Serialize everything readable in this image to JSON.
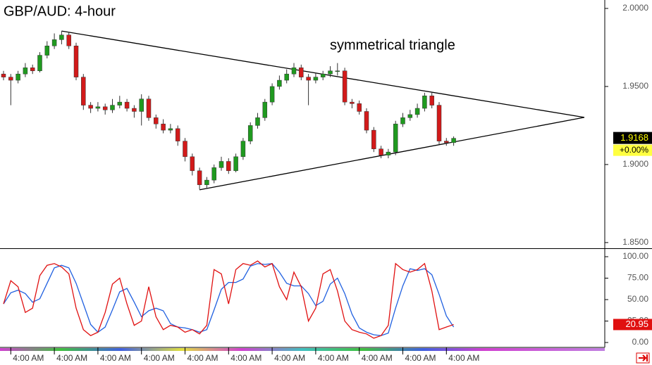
{
  "chart_data": [
    {
      "type": "candlestick",
      "title": "GBP/AUD: 4-hour",
      "annotation": "symmetrical triangle",
      "categories": [
        null,
        "4:00 AM",
        null,
        null,
        null,
        null,
        null,
        "4:00 AM",
        null,
        null,
        null,
        null,
        null,
        "4:00 AM",
        null,
        null,
        null,
        null,
        null,
        "4:00 AM",
        null,
        null,
        null,
        null,
        null,
        "4:00 AM",
        null,
        null,
        null,
        null,
        null,
        "4:00 AM",
        null,
        null,
        null,
        null,
        null,
        "4:00 AM",
        null,
        null,
        null,
        null,
        null,
        "4:00 AM",
        null,
        null,
        null,
        null,
        null,
        "4:00 AM",
        null,
        null,
        null,
        null,
        null,
        "4:00 AM",
        null,
        null,
        null,
        null,
        null,
        "4:00 AM",
        null
      ],
      "open": [
        1.958,
        1.956,
        1.954,
        1.958,
        1.962,
        1.96,
        1.97,
        1.976,
        1.98,
        1.983,
        1.976,
        1.956,
        1.938,
        1.936,
        1.937,
        1.935,
        1.938,
        1.94,
        1.936,
        1.934,
        1.942,
        1.93,
        1.926,
        1.922,
        1.923,
        1.915,
        1.905,
        1.896,
        1.887,
        1.89,
        1.898,
        1.902,
        1.896,
        1.905,
        1.915,
        1.925,
        1.93,
        1.94,
        1.95,
        1.954,
        1.958,
        1.962,
        1.956,
        1.954,
        1.956,
        1.958,
        1.96,
        1.96,
        1.94,
        1.939,
        1.934,
        1.922,
        1.91,
        1.906,
        1.908,
        1.926,
        1.93,
        1.932,
        1.936,
        1.944,
        1.938,
        1.915,
        1.914
      ],
      "high": [
        1.96,
        1.958,
        1.96,
        1.965,
        1.964,
        1.972,
        1.979,
        1.984,
        1.9855,
        1.985,
        1.978,
        1.958,
        1.94,
        1.94,
        1.939,
        1.942,
        1.944,
        1.942,
        1.938,
        1.945,
        1.944,
        1.932,
        1.929,
        1.926,
        1.925,
        1.917,
        1.907,
        1.898,
        1.892,
        1.9,
        1.905,
        1.904,
        1.907,
        1.917,
        1.927,
        1.933,
        1.942,
        1.952,
        1.957,
        1.961,
        1.965,
        1.964,
        1.958,
        1.959,
        1.96,
        1.963,
        1.965,
        1.962,
        1.942,
        1.941,
        1.936,
        1.924,
        1.912,
        1.91,
        1.928,
        1.933,
        1.935,
        1.939,
        1.946,
        1.946,
        1.94,
        1.917,
        1.918
      ],
      "low": [
        1.954,
        1.938,
        1.952,
        1.956,
        1.958,
        1.959,
        1.968,
        1.974,
        1.977,
        1.974,
        1.954,
        1.935,
        1.933,
        1.934,
        1.932,
        1.933,
        1.936,
        1.934,
        1.93,
        1.925,
        1.928,
        1.923,
        1.92,
        1.92,
        1.912,
        1.902,
        1.893,
        1.884,
        1.885,
        1.888,
        1.896,
        1.894,
        1.895,
        1.903,
        1.913,
        1.923,
        1.928,
        1.938,
        1.948,
        1.952,
        1.956,
        1.954,
        1.938,
        1.952,
        1.954,
        1.956,
        1.957,
        1.938,
        1.936,
        1.932,
        1.92,
        1.908,
        1.904,
        1.904,
        1.906,
        1.924,
        1.928,
        1.93,
        1.934,
        1.936,
        1.913,
        1.912,
        1.912
      ],
      "close": [
        1.956,
        1.954,
        1.958,
        1.962,
        1.96,
        1.97,
        1.976,
        1.98,
        1.983,
        1.976,
        1.956,
        1.938,
        1.936,
        1.937,
        1.935,
        1.938,
        1.94,
        1.936,
        1.934,
        1.942,
        1.93,
        1.926,
        1.922,
        1.923,
        1.915,
        1.905,
        1.896,
        1.887,
        1.89,
        1.898,
        1.902,
        1.896,
        1.905,
        1.915,
        1.925,
        1.93,
        1.94,
        1.95,
        1.954,
        1.958,
        1.962,
        1.956,
        1.954,
        1.956,
        1.958,
        1.96,
        1.96,
        1.94,
        1.939,
        1.934,
        1.922,
        1.91,
        1.906,
        1.908,
        1.926,
        1.93,
        1.932,
        1.936,
        1.944,
        1.938,
        1.915,
        1.914,
        1.9168
      ],
      "up_color": "#1f9a1f",
      "down_color": "#d21a1a",
      "ylim": [
        1.8468,
        2.0054
      ],
      "yticks": [
        {
          "value": 2.0,
          "label": "2.0000"
        },
        {
          "value": 1.95,
          "label": "1.9500"
        },
        {
          "value": 1.9,
          "label": "1.9000"
        },
        {
          "value": 1.85,
          "label": "1.8500"
        }
      ],
      "last_change": "+0.00%",
      "trendlines": [
        {
          "x": [
            8,
            80
          ],
          "y": [
            1.9855,
            1.9302
          ]
        },
        {
          "x": [
            27,
            80
          ],
          "y": [
            1.8838,
            1.9302
          ]
        }
      ]
    },
    {
      "type": "line",
      "series": [
        {
          "color": "#e01010",
          "values": [
            45,
            72,
            65,
            35,
            40,
            78,
            90,
            92,
            88,
            80,
            40,
            15,
            8,
            12,
            35,
            68,
            75,
            45,
            20,
            25,
            65,
            30,
            15,
            20,
            18,
            12,
            15,
            10,
            20,
            85,
            80,
            45,
            85,
            92,
            90,
            95,
            88,
            92,
            65,
            50,
            82,
            65,
            25,
            40,
            80,
            85,
            60,
            25,
            15,
            12,
            10,
            5,
            8,
            20,
            92,
            85,
            82,
            85,
            92,
            60,
            15,
            18,
            20.95
          ]
        },
        {
          "color": "#2060e0",
          "values": [
            45,
            58,
            61,
            57,
            47,
            51,
            69,
            87,
            90,
            87,
            69,
            45,
            21,
            12,
            18,
            38,
            59,
            63,
            47,
            30,
            37,
            40,
            37,
            22,
            18,
            17,
            15,
            12,
            15,
            38,
            62,
            70,
            70,
            74,
            89,
            92,
            91,
            92,
            82,
            69,
            66,
            66,
            57,
            43,
            48,
            68,
            75,
            57,
            33,
            17,
            12,
            9,
            8,
            11,
            40,
            66,
            86,
            84,
            86,
            79,
            56,
            31,
            18
          ]
        }
      ],
      "ylim": [
        -4.1,
        108.2
      ],
      "yticks": [
        {
          "value": 100,
          "label": "100.00"
        },
        {
          "value": 75,
          "label": "75.00"
        },
        {
          "value": 50,
          "label": "50.00"
        },
        {
          "value": 25,
          "label": "25.00"
        },
        {
          "value": 0,
          "label": "0.00"
        }
      ]
    }
  ]
}
